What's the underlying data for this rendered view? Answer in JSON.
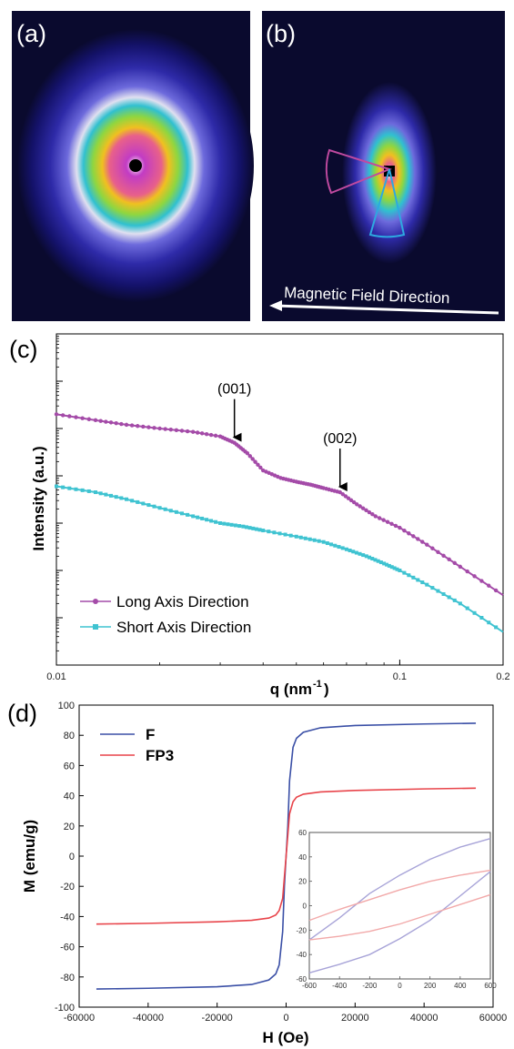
{
  "panels": {
    "a": {
      "label": "(a)"
    },
    "b": {
      "label": "(b)",
      "arrow_text": "Magnetic Field Direction"
    },
    "c": {
      "label": "(c)"
    },
    "d": {
      "label": "(d)"
    }
  },
  "colors": {
    "long_axis": "#a44ba8",
    "short_axis": "#3fc3d1",
    "F": "#3a4fa6",
    "FP3": "#e8444a",
    "inset_F": "#a8a4d8",
    "inset_FP3": "#f2a9a9"
  },
  "chart_data": [
    {
      "type": "line",
      "panel": "c",
      "xlabel": "q (nm",
      "xlabel_sup": "-1",
      "xlabel_end": ")",
      "ylabel": "Intensity (a.u.)",
      "xscale": "log",
      "yscale": "log",
      "xlim": [
        0.01,
        0.2
      ],
      "ylim": [
        1e-06,
        10
      ],
      "x_tick_labels": [
        "0.01",
        "0.1",
        "0.2"
      ],
      "y_tick_labels": [],
      "legend_position": "bottom-left",
      "annotations": [
        {
          "text": "(001)",
          "x": 0.033
        },
        {
          "text": "(002)",
          "x": 0.067
        }
      ],
      "series": [
        {
          "name": "Long Axis Direction",
          "marker": "circle",
          "x": [
            0.01,
            0.013,
            0.016,
            0.02,
            0.025,
            0.03,
            0.033,
            0.036,
            0.04,
            0.045,
            0.05,
            0.055,
            0.06,
            0.067,
            0.075,
            0.085,
            0.1,
            0.12,
            0.15,
            0.2
          ],
          "y": [
            0.2,
            0.15,
            0.12,
            0.1,
            0.085,
            0.068,
            0.05,
            0.03,
            0.013,
            0.009,
            0.0075,
            0.0065,
            0.0055,
            0.0045,
            0.0025,
            0.0014,
            0.0008,
            0.00035,
            0.00012,
            3e-05
          ]
        },
        {
          "name": "Short Axis Direction",
          "marker": "square",
          "x": [
            0.01,
            0.013,
            0.016,
            0.02,
            0.025,
            0.03,
            0.035,
            0.04,
            0.05,
            0.06,
            0.07,
            0.08,
            0.09,
            0.1,
            0.12,
            0.15,
            0.2
          ],
          "y": [
            0.006,
            0.0045,
            0.0032,
            0.0021,
            0.0014,
            0.001,
            0.00085,
            0.0007,
            0.00052,
            0.0004,
            0.00028,
            0.0002,
            0.00014,
            0.0001,
            5e-05,
            2e-05,
            5e-06
          ]
        }
      ]
    },
    {
      "type": "line",
      "panel": "d",
      "xlabel": "H (Oe)",
      "ylabel": "M (emu/g)",
      "xlim": [
        -60000,
        60000
      ],
      "ylim": [
        -100,
        100
      ],
      "x_ticks": [
        -60000,
        -40000,
        -20000,
        0,
        20000,
        40000,
        60000
      ],
      "y_ticks": [
        -100,
        -80,
        -60,
        -40,
        -20,
        0,
        20,
        40,
        60,
        80,
        100
      ],
      "legend_position": "top-left",
      "series": [
        {
          "name": "F",
          "x": [
            -55000,
            -40000,
            -20000,
            -10000,
            -5000,
            -3000,
            -2000,
            -1000,
            -500,
            0,
            500,
            1000,
            2000,
            3000,
            5000,
            10000,
            20000,
            40000,
            55000
          ],
          "y": [
            -88,
            -87.5,
            -86.5,
            -85,
            -82,
            -78,
            -72,
            -50,
            -20,
            0,
            20,
            50,
            72,
            78,
            82,
            85,
            86.5,
            87.5,
            88
          ]
        },
        {
          "name": "FP3",
          "x": [
            -55000,
            -40000,
            -20000,
            -10000,
            -5000,
            -3000,
            -2000,
            -1000,
            -500,
            0,
            500,
            1000,
            2000,
            3000,
            5000,
            10000,
            20000,
            40000,
            55000
          ],
          "y": [
            -45,
            -44.5,
            -43.5,
            -42.5,
            -41,
            -39,
            -36,
            -28,
            -14,
            0,
            14,
            28,
            36,
            39,
            41,
            42.5,
            43.5,
            44.5,
            45
          ]
        }
      ],
      "inset": {
        "xlim": [
          -600,
          600
        ],
        "ylim": [
          -60,
          60
        ],
        "x_ticks": [
          -600,
          -400,
          -200,
          0,
          200,
          400,
          600
        ],
        "y_ticks": [
          -60,
          -40,
          -20,
          0,
          20,
          40,
          60
        ],
        "series": [
          {
            "name": "F_upper",
            "x": [
              -600,
              -400,
              -200,
              0,
              200,
              400,
              600
            ],
            "y": [
              -28,
              -10,
              10,
              25,
              38,
              48,
              55
            ]
          },
          {
            "name": "F_lower",
            "x": [
              -600,
              -400,
              -200,
              0,
              200,
              400,
              600
            ],
            "y": [
              -55,
              -48,
              -40,
              -27,
              -12,
              8,
              28
            ]
          },
          {
            "name": "FP3_upper",
            "x": [
              -600,
              -400,
              -200,
              0,
              200,
              400,
              600
            ],
            "y": [
              -12,
              -3,
              5,
              13,
              20,
              25,
              29
            ]
          },
          {
            "name": "FP3_lower",
            "x": [
              -600,
              -400,
              -200,
              0,
              200,
              400,
              600
            ],
            "y": [
              -28,
              -25,
              -21,
              -15,
              -7,
              1,
              9
            ]
          }
        ]
      }
    }
  ]
}
